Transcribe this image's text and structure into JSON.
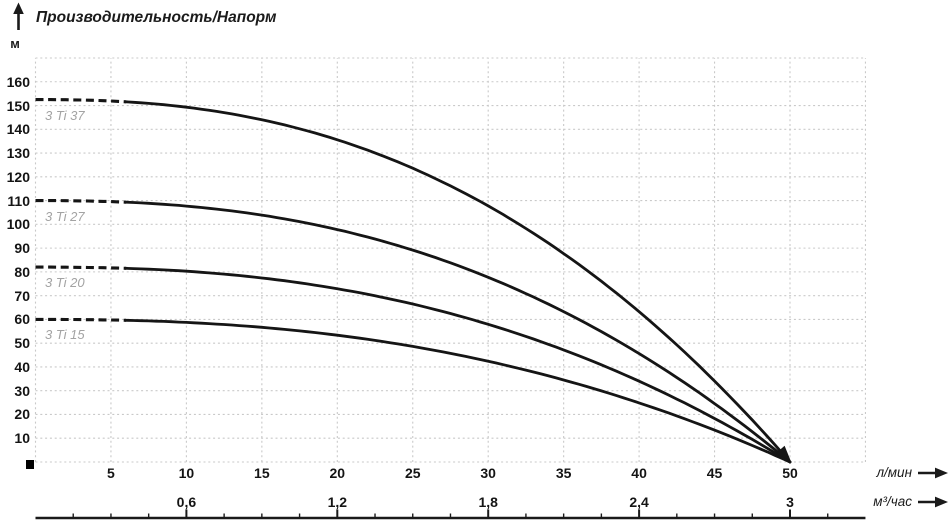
{
  "title": "Производительность/Напорм",
  "y_axis": {
    "unit": "м",
    "ticks": [
      10,
      20,
      30,
      40,
      50,
      60,
      70,
      80,
      90,
      100,
      110,
      120,
      130,
      140,
      150,
      160
    ]
  },
  "x_axis_primary": {
    "label": "л/мин",
    "ticks": [
      5,
      10,
      15,
      20,
      25,
      30,
      35,
      40,
      45,
      50
    ]
  },
  "x_axis_secondary": {
    "label": "м³/час",
    "ticks": [
      {
        "q": 10,
        "label": "0,6"
      },
      {
        "q": 20,
        "label": "1,2"
      },
      {
        "q": 30,
        "label": "1,8"
      },
      {
        "q": 40,
        "label": "2,4"
      },
      {
        "q": 50,
        "label": "3"
      }
    ]
  },
  "colors": {
    "curve": "#151515",
    "grid": "#c9c9c9",
    "axis": "#1a1a1a",
    "series_label": "#a3a3a3"
  },
  "chart_data": {
    "type": "line",
    "title": "Производительность/Напорм",
    "xlabel": "л/мин",
    "xlabel_secondary": "м³/час",
    "ylabel": "м",
    "xlim": [
      0,
      55
    ],
    "ylim": [
      0,
      170
    ],
    "grid": true,
    "legend_position": "inline-left",
    "model": {
      "exponent": 2.4,
      "q_end": 50,
      "dash_until_q": 6
    },
    "series": [
      {
        "name": "3 Ti 37",
        "h0": 152.5,
        "points": [
          [
            0,
            152.5
          ],
          [
            5,
            151.9
          ],
          [
            10,
            149.3
          ],
          [
            15,
            144.0
          ],
          [
            20,
            135.6
          ],
          [
            25,
            123.7
          ],
          [
            30,
            107.7
          ],
          [
            35,
            87.7
          ],
          [
            40,
            63.3
          ],
          [
            45,
            34.0
          ],
          [
            50,
            0
          ]
        ]
      },
      {
        "name": "3 Ti 27",
        "h0": 110,
        "points": [
          [
            0,
            110
          ],
          [
            5,
            109.6
          ],
          [
            10,
            107.7
          ],
          [
            15,
            103.9
          ],
          [
            20,
            97.8
          ],
          [
            25,
            89.2
          ],
          [
            30,
            77.7
          ],
          [
            35,
            63.2
          ],
          [
            40,
            45.6
          ],
          [
            45,
            24.5
          ],
          [
            50,
            0
          ]
        ]
      },
      {
        "name": "3 Ti 20",
        "h0": 82,
        "points": [
          [
            0,
            82
          ],
          [
            5,
            81.7
          ],
          [
            10,
            80.3
          ],
          [
            15,
            77.4
          ],
          [
            20,
            72.9
          ],
          [
            25,
            66.5
          ],
          [
            30,
            57.9
          ],
          [
            35,
            47.1
          ],
          [
            40,
            34.0
          ],
          [
            45,
            18.3
          ],
          [
            50,
            0
          ]
        ]
      },
      {
        "name": "3 Ti 15",
        "h0": 60,
        "points": [
          [
            0,
            60
          ],
          [
            5,
            59.8
          ],
          [
            10,
            58.7
          ],
          [
            15,
            56.6
          ],
          [
            20,
            53.3
          ],
          [
            25,
            48.7
          ],
          [
            30,
            42.4
          ],
          [
            35,
            34.5
          ],
          [
            40,
            24.9
          ],
          [
            45,
            13.4
          ],
          [
            50,
            0
          ]
        ]
      }
    ]
  }
}
